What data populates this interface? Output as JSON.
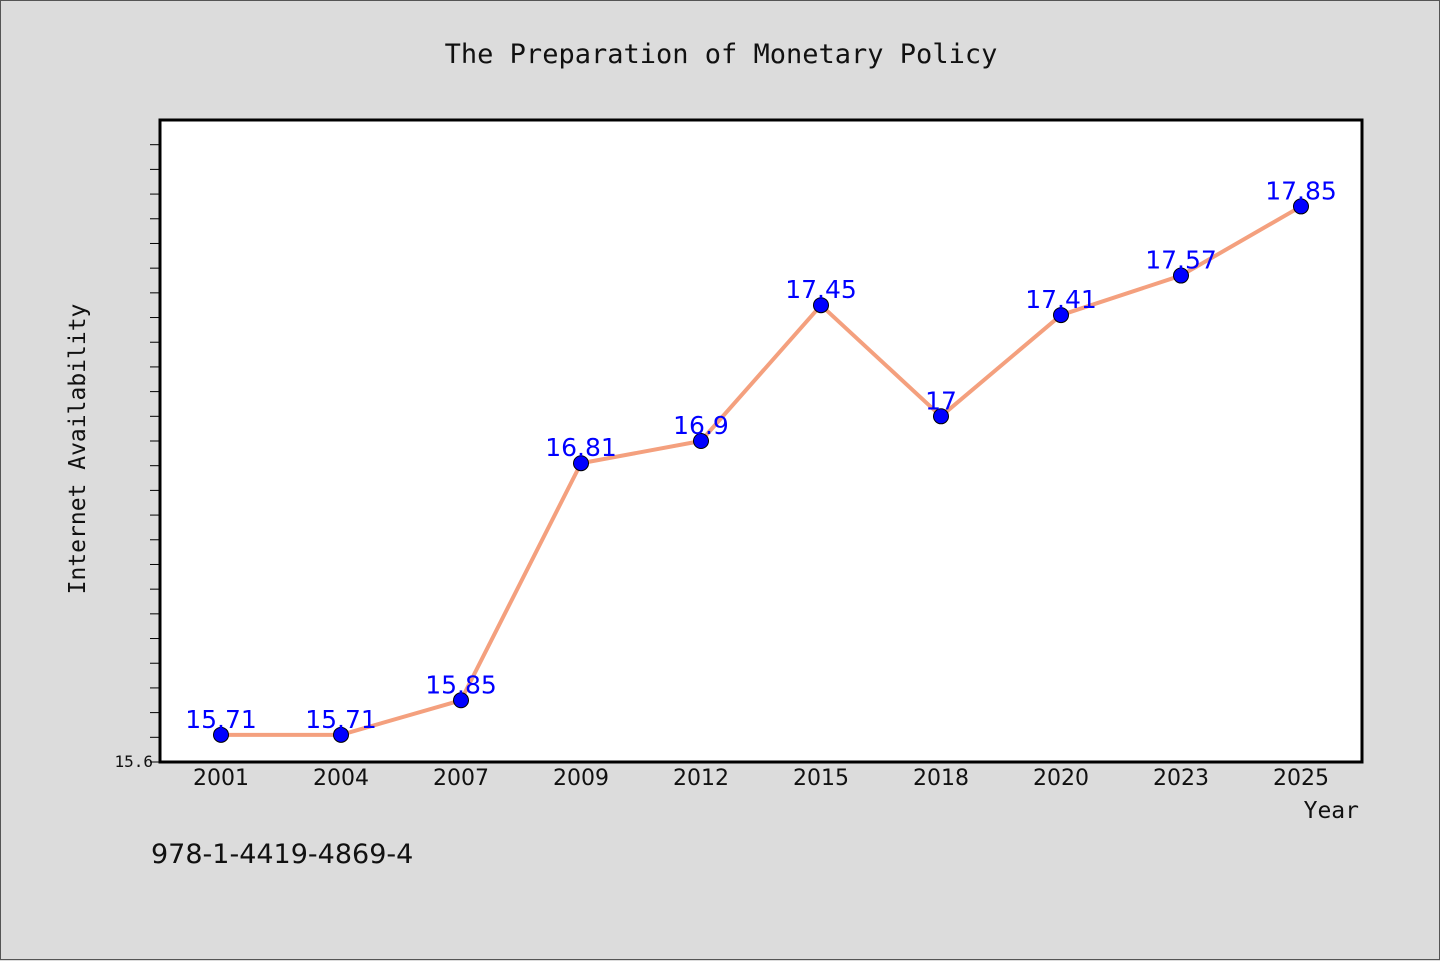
{
  "page": {
    "background": "#dcdcdc",
    "isbn": "978-1-4419-4869-4"
  },
  "chart_data": {
    "type": "line",
    "title": "The Preparation of Monetary Policy",
    "xlabel": "Year",
    "ylabel": "Internet Availability",
    "categories": [
      "2001",
      "2004",
      "2007",
      "2009",
      "2012",
      "2015",
      "2018",
      "2020",
      "2023",
      "2025"
    ],
    "series": [
      {
        "values": [
          15.71,
          15.71,
          15.85,
          16.81,
          16.9,
          17.45,
          17,
          17.41,
          17.57,
          17.85
        ],
        "labels": [
          "15.71",
          "15.71",
          "15.85",
          "16.81",
          "16.9",
          "17.45",
          "17",
          "17.41",
          "17.57",
          "17.85"
        ],
        "line_color": "#f4a07e",
        "marker_color": "#0000ff"
      }
    ],
    "ylim": [
      15.6,
      18.2
    ],
    "ytick_labels": [
      "15.6"
    ],
    "grid": false,
    "legend": "none"
  }
}
